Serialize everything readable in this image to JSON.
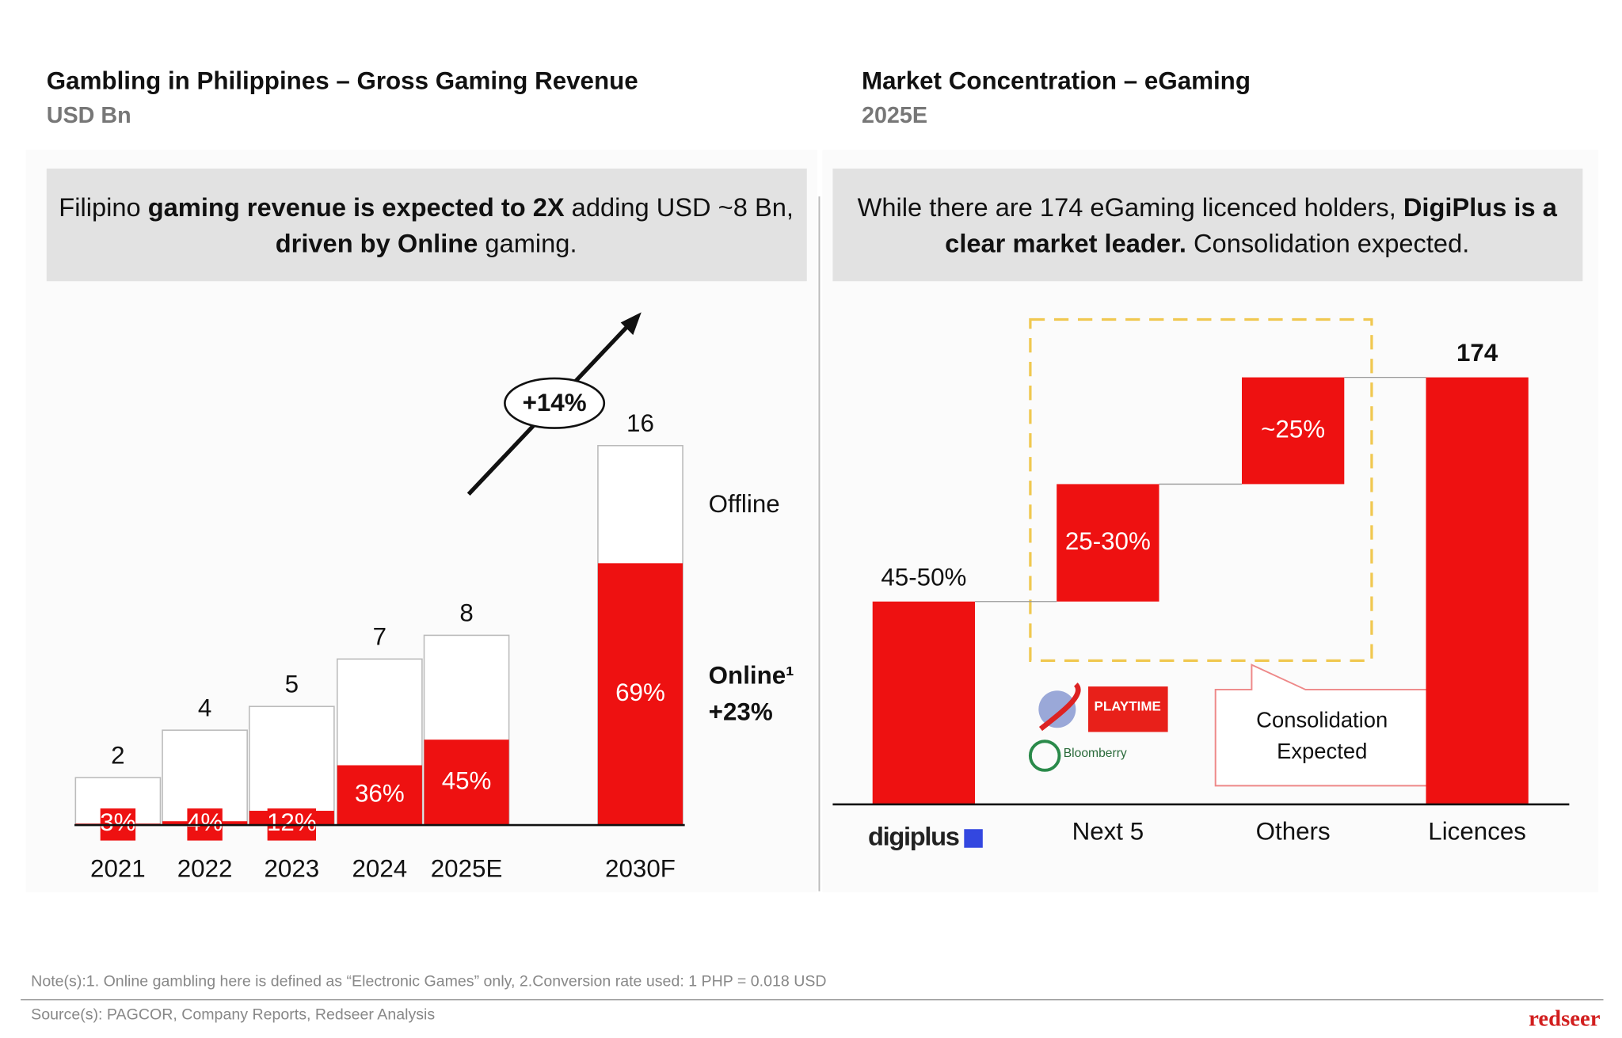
{
  "chart_data": [
    {
      "type": "share_bar",
      "title": "Gambling in Philippines – Gross Gaming Revenue",
      "subtitle": "USD Bn",
      "headline": [
        [
          {
            "text": "Filipino ",
            "bold": false
          },
          {
            "text": "gaming revenue is expected to 2X",
            "bold": true
          },
          {
            "text": " adding USD ~8 Bn,",
            "bold": false
          }
        ],
        [
          {
            "text": "driven by Online",
            "bold": true
          },
          {
            "text": " gaming.",
            "bold": false
          }
        ]
      ],
      "categories": [
        "2021",
        "2022",
        "2023",
        "2024",
        "2025E",
        "2030F"
      ],
      "values": [
        2,
        4,
        5,
        7,
        8,
        16
      ],
      "ylim": [
        0,
        16
      ],
      "series": [
        {
          "name": "Offline",
          "color": "#ffffff"
        },
        {
          "name": "Online¹",
          "color": "#ee1111",
          "values": [
            3,
            4,
            12,
            36,
            45,
            69
          ],
          "value_labels": [
            "3%",
            "4%",
            "12%",
            "36%",
            "45%",
            "69%"
          ],
          "annotation": "+23%"
        }
      ],
      "annotation": "+14%"
    },
    {
      "type": "waterfall",
      "title": "Market Concentration – eGaming",
      "subtitle": "2025E",
      "headline": [
        [
          {
            "text": "While there are 174 eGaming licenced holders, ",
            "bold": false
          },
          {
            "text": "DigiPlus is a",
            "bold": true
          }
        ],
        [
          {
            "text": "clear market leader.",
            "bold": true
          },
          {
            "text": " Consolidation expected.",
            "bold": false
          }
        ]
      ],
      "categories": [
        "digiplus",
        "Next 5",
        "Others"
      ],
      "values": [
        47.5,
        27.5,
        25
      ],
      "value_labels": [
        "45-50%",
        "25-30%",
        "~25%"
      ],
      "color": "#ee1111",
      "ylim": [
        0,
        100
      ],
      "total": {
        "category": "Licences",
        "licences": 174
      },
      "callout": [
        "Consolidation",
        "Expected"
      ],
      "logos": [
        "PLAYTIME",
        "Bloomberry"
      ]
    }
  ],
  "footer": {
    "note": "Note(s):1. Online gambling here is defined as “Electronic Games” only, 2.Conversion rate used: 1 PHP = 0.018 USD",
    "source": "Source(s): PAGCOR, Company Reports, Redseer Analysis",
    "brand": "redseer"
  }
}
